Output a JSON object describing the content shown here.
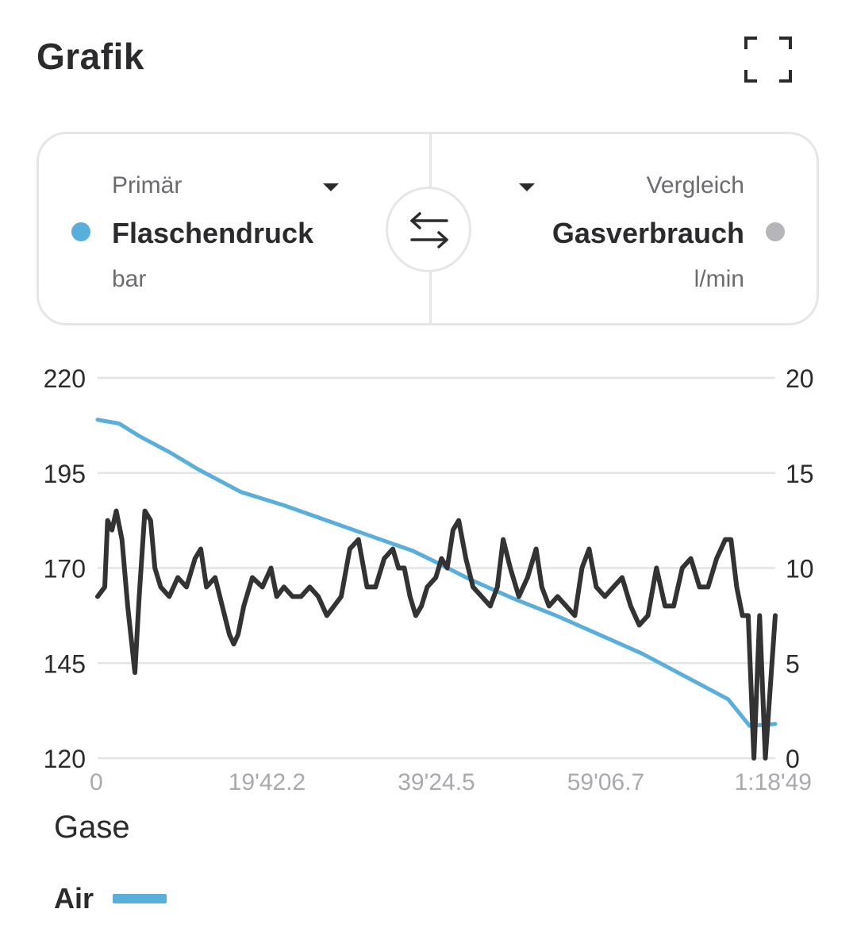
{
  "header": {
    "title": "Grafik",
    "expand_icon": "fullscreen-icon"
  },
  "selector": {
    "primary": {
      "caption": "Primär",
      "metric": "Flaschendruck",
      "unit": "bar",
      "color": "#5aaedc"
    },
    "compare": {
      "caption": "Vergleich",
      "metric": "Gasverbrauch",
      "unit": "l/min",
      "color": "#b5b5ba"
    },
    "swap_icon": "swap-arrows-icon"
  },
  "chart_data": {
    "type": "line",
    "x_tick_labels": [
      "0",
      "19'42.2",
      "39'24.5",
      "59'06.7",
      "1:18'49"
    ],
    "x_tick_seconds": [
      0,
      1182.2,
      2364.5,
      3546.7,
      4729
    ],
    "xlim": [
      0,
      4729
    ],
    "y_left": {
      "unit": "bar",
      "ticks": [
        "220",
        "195",
        "170",
        "145",
        "120"
      ],
      "ylim": [
        120,
        220
      ]
    },
    "y_right": {
      "unit": "l/min",
      "ticks": [
        "20",
        "15",
        "10",
        "5",
        "0"
      ],
      "ylim": [
        0,
        20
      ]
    },
    "grid": true,
    "series": [
      {
        "name": "Flaschendruck",
        "axis": "left",
        "color": "#5aaedc",
        "x": [
          0,
          150,
          300,
          500,
          700,
          1000,
          1300,
          1600,
          1900,
          2200,
          2364,
          2600,
          2900,
          3200,
          3500,
          3800,
          4000,
          4200,
          4400,
          4550,
          4729
        ],
        "y": [
          209,
          208,
          204.5,
          200.5,
          196,
          190,
          186.5,
          182.5,
          178.5,
          174.5,
          171.5,
          167,
          162,
          157.5,
          152.5,
          147.5,
          143.5,
          139.5,
          135.5,
          128.5,
          129
        ]
      },
      {
        "name": "Gasverbrauch",
        "axis": "right",
        "color": "#333333",
        "x": [
          0,
          50,
          70,
          100,
          130,
          170,
          210,
          260,
          290,
          330,
          370,
          400,
          440,
          500,
          560,
          620,
          680,
          720,
          760,
          820,
          870,
          920,
          950,
          980,
          1020,
          1080,
          1150,
          1210,
          1250,
          1300,
          1360,
          1420,
          1480,
          1540,
          1600,
          1650,
          1700,
          1760,
          1820,
          1880,
          1940,
          2000,
          2060,
          2100,
          2140,
          2180,
          2220,
          2260,
          2300,
          2360,
          2400,
          2440,
          2480,
          2520,
          2570,
          2620,
          2680,
          2740,
          2790,
          2830,
          2880,
          2940,
          3000,
          3060,
          3100,
          3150,
          3210,
          3270,
          3330,
          3380,
          3430,
          3480,
          3540,
          3600,
          3660,
          3720,
          3780,
          3840,
          3900,
          3960,
          4020,
          4080,
          4140,
          4200,
          4260,
          4320,
          4380,
          4420,
          4460,
          4500,
          4540,
          4580,
          4620,
          4660,
          4729
        ],
        "y": [
          8.5,
          9,
          12.5,
          12,
          13,
          11.5,
          8,
          4.5,
          8.5,
          13,
          12.5,
          10,
          9,
          8.5,
          9.5,
          9,
          10.5,
          11,
          9,
          9.5,
          8,
          6.5,
          6,
          6.5,
          8,
          9.5,
          9,
          10,
          8.5,
          9,
          8.5,
          8.5,
          9,
          8.5,
          7.5,
          8,
          8.5,
          11,
          11.5,
          9,
          9,
          10.5,
          11,
          10,
          10,
          8.5,
          7.5,
          8,
          9,
          9.5,
          10.5,
          10,
          12,
          12.5,
          10.5,
          9,
          8.5,
          8,
          9,
          11.5,
          10,
          8.5,
          9.5,
          11,
          9,
          8,
          8.5,
          8,
          7.5,
          10,
          11,
          9,
          8.5,
          9,
          9.5,
          8,
          7,
          7.5,
          10,
          8,
          8,
          10,
          10.5,
          9,
          9,
          10.5,
          11.5,
          11.5,
          9,
          7.5,
          7.5,
          0,
          7.5,
          0,
          7.5
        ]
      }
    ]
  },
  "gases": {
    "title": "Gase",
    "items": [
      {
        "label": "Air",
        "color": "#5aaedc"
      }
    ]
  }
}
